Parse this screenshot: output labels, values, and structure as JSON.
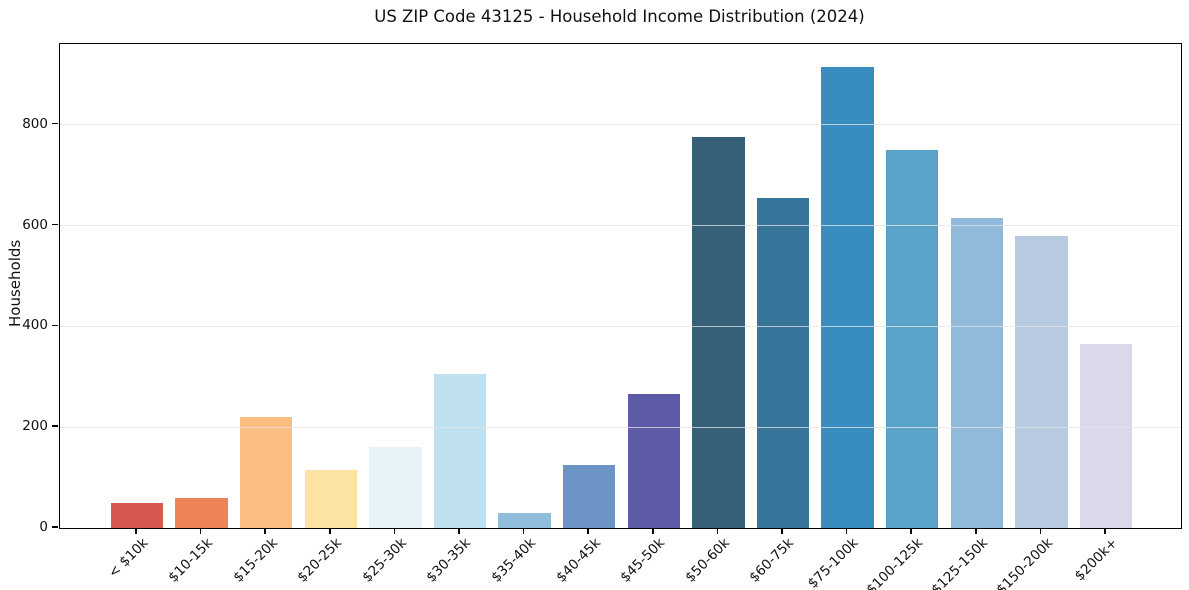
{
  "chart_data": {
    "type": "bar",
    "title": "US ZIP Code 43125 - Household Income Distribution (2024)",
    "xlabel": "",
    "ylabel": "Households",
    "categories": [
      "< $10k",
      "$10-15k",
      "$15-20k",
      "$20-25k",
      "$25-30k",
      "$30-35k",
      "$35-40k",
      "$40-45k",
      "$45-50k",
      "$50-60k",
      "$60-75k",
      "$75-100k",
      "$100-125k",
      "$125-150k",
      "$150-200k",
      "$200k+"
    ],
    "values": [
      50,
      60,
      220,
      115,
      160,
      305,
      30,
      125,
      265,
      775,
      655,
      915,
      750,
      615,
      580,
      365
    ],
    "bar_colors": [
      "#d6574f",
      "#ef8358",
      "#fbbd80",
      "#fde3a3",
      "#e7f3f6",
      "#bfe0ee",
      "#90bddc",
      "#6b93c6",
      "#5d5ba7",
      "#356077",
      "#36749a",
      "#398cbf",
      "#59a3c9",
      "#91b9d9",
      "#b8c9e2",
      "#d9d9e9"
    ],
    "yticks": [
      0,
      200,
      400,
      600,
      800
    ],
    "ylim": [
      0,
      960
    ],
    "grid": "horizontal",
    "legend": "none",
    "background_color": "#ffffff",
    "spine_color": "#000000",
    "gridline_color": "#e6e6e6",
    "text_color": "#111111"
  }
}
